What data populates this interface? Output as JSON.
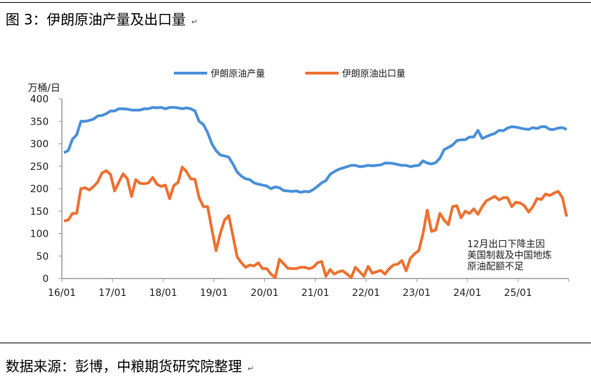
{
  "title": "图 3：伊朗原油产量及出口量",
  "source": "数据来源：彭博，中粮期货研究院整理",
  "chart_data": {
    "type": "line",
    "title": "",
    "ylabel": "万桶/日",
    "ylim": [
      0,
      400
    ],
    "yticks": [
      0,
      50,
      100,
      150,
      200,
      250,
      300,
      350,
      400
    ],
    "xticks": [
      "16/01",
      "17/01",
      "18/01",
      "19/01",
      "20/01",
      "21/01",
      "22/01",
      "23/01",
      "24/01",
      "25/01"
    ],
    "x_start": "2016-01",
    "x_end": "2025-12",
    "frequency": "monthly",
    "grid": false,
    "legend": "top",
    "annotation": [
      "12月出口下降主因",
      "美国制裁及中国地炼",
      "原油配额不足"
    ],
    "series": [
      {
        "name": "伊朗原油产量",
        "color": "#4A90D9",
        "values": [
          280,
          285,
          310,
          320,
          350,
          350,
          352,
          355,
          362,
          363,
          367,
          373,
          373,
          378,
          378,
          377,
          375,
          375,
          375,
          378,
          378,
          381,
          380,
          381,
          378,
          381,
          381,
          380,
          378,
          380,
          378,
          373,
          350,
          343,
          325,
          300,
          285,
          275,
          273,
          270,
          255,
          237,
          228,
          222,
          220,
          213,
          210,
          208,
          206,
          200,
          204,
          202,
          196,
          195,
          194,
          195,
          192,
          194,
          193,
          198,
          205,
          213,
          218,
          232,
          238,
          243,
          246,
          249,
          252,
          252,
          249,
          250,
          252,
          251,
          252,
          253,
          257,
          257,
          256,
          254,
          252,
          252,
          249,
          251,
          252,
          262,
          257,
          255,
          258,
          268,
          287,
          292,
          297,
          307,
          309,
          309,
          315,
          315,
          330,
          312,
          316,
          320,
          323,
          330,
          329,
          335,
          338,
          337,
          335,
          333,
          332,
          336,
          334,
          338,
          338,
          332,
          332,
          335,
          336,
          332
        ]
      },
      {
        "name": "伊朗原油出口量",
        "color": "#ED7131",
        "values": [
          128,
          130,
          145,
          145,
          200,
          202,
          197,
          205,
          215,
          235,
          240,
          232,
          195,
          215,
          233,
          222,
          183,
          220,
          212,
          211,
          213,
          225,
          210,
          205,
          208,
          178,
          207,
          214,
          248,
          238,
          222,
          221,
          180,
          160,
          160,
          110,
          62,
          100,
          130,
          140,
          95,
          48,
          35,
          25,
          30,
          28,
          35,
          22,
          22,
          10,
          2,
          43,
          33,
          23,
          22,
          22,
          25,
          25,
          22,
          25,
          35,
          38,
          5,
          20,
          10,
          15,
          17,
          10,
          2,
          25,
          15,
          5,
          27,
          12,
          15,
          18,
          10,
          22,
          30,
          32,
          40,
          17,
          45,
          55,
          62,
          100,
          152,
          105,
          108,
          145,
          130,
          120,
          160,
          162,
          135,
          150,
          145,
          155,
          143,
          160,
          173,
          178,
          183,
          175,
          180,
          180,
          160,
          170,
          168,
          162,
          148,
          160,
          178,
          176,
          188,
          185,
          190,
          194,
          180,
          138
        ]
      }
    ]
  }
}
